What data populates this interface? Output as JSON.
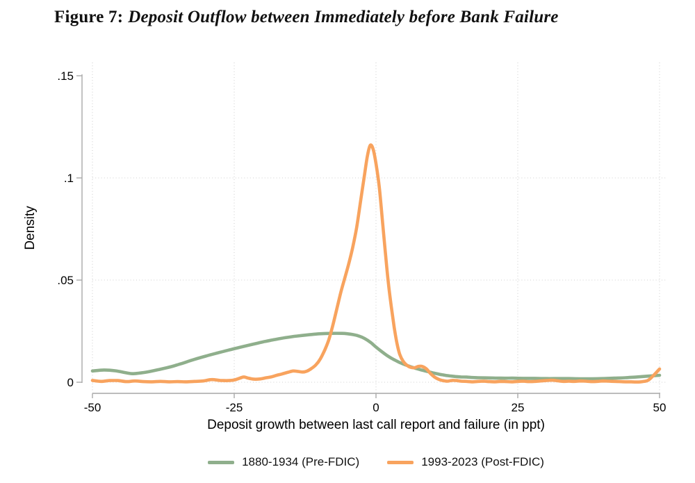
{
  "title": {
    "prefix": "Figure 7:",
    "main": "Deposit Outflow between Immediately before Bank Failure"
  },
  "chart_data": {
    "type": "line",
    "title": "Figure 7: Deposit Outflow between Immediately before Bank Failure",
    "xlabel": "Deposit growth between last call report and failure (in ppt)",
    "ylabel": "Density",
    "xlim": [
      -50,
      50
    ],
    "ylim": [
      0,
      0.15
    ],
    "grid": "dotted",
    "legend_position": "bottom-center",
    "axis_color": "#a9a9a9",
    "gridline_color": "#cfcfcf",
    "x_ticks": [
      {
        "value": -50,
        "label": "-50",
        "grid": true
      },
      {
        "value": -25,
        "label": "-25",
        "grid": true
      },
      {
        "value": 0,
        "label": "0",
        "grid": true
      },
      {
        "value": 25,
        "label": "25",
        "grid": true
      },
      {
        "value": 50,
        "label": "50",
        "grid": true
      }
    ],
    "y_ticks": [
      {
        "value": 0,
        "label": "0",
        "grid": true
      },
      {
        "value": 0.05,
        "label": ".05",
        "grid": true
      },
      {
        "value": 0.1,
        "label": ".1",
        "grid": true
      },
      {
        "value": 0.15,
        "label": ".15",
        "grid": false
      }
    ],
    "series": [
      {
        "name": "1880-1934 (Pre-FDIC)",
        "color": "#8FAF8C",
        "points": [
          [
            -50,
            0.0055
          ],
          [
            -48,
            0.006
          ],
          [
            -46,
            0.0056
          ],
          [
            -44,
            0.0046
          ],
          [
            -43,
            0.0042
          ],
          [
            -42,
            0.0044
          ],
          [
            -40,
            0.0052
          ],
          [
            -38,
            0.0064
          ],
          [
            -36,
            0.0077
          ],
          [
            -34,
            0.0094
          ],
          [
            -32,
            0.0112
          ],
          [
            -30,
            0.0128
          ],
          [
            -28,
            0.0143
          ],
          [
            -26,
            0.0157
          ],
          [
            -24,
            0.0171
          ],
          [
            -22,
            0.0184
          ],
          [
            -20,
            0.0197
          ],
          [
            -18,
            0.0208
          ],
          [
            -16,
            0.0218
          ],
          [
            -14,
            0.0226
          ],
          [
            -12,
            0.0232
          ],
          [
            -10,
            0.0237
          ],
          [
            -8,
            0.0239
          ],
          [
            -6,
            0.0239
          ],
          [
            -5,
            0.0237
          ],
          [
            -4,
            0.0233
          ],
          [
            -3,
            0.0226
          ],
          [
            -2,
            0.0214
          ],
          [
            -1,
            0.0196
          ],
          [
            0,
            0.0172
          ],
          [
            1,
            0.015
          ],
          [
            2,
            0.013
          ],
          [
            3,
            0.0113
          ],
          [
            4,
            0.0099
          ],
          [
            5,
            0.0087
          ],
          [
            6,
            0.0077
          ],
          [
            7,
            0.0068
          ],
          [
            8,
            0.006
          ],
          [
            9,
            0.0053
          ],
          [
            10,
            0.0046
          ],
          [
            11,
            0.004
          ],
          [
            12,
            0.0035
          ],
          [
            13,
            0.0031
          ],
          [
            14,
            0.0028
          ],
          [
            15,
            0.0026
          ],
          [
            16,
            0.0025
          ],
          [
            17,
            0.0023
          ],
          [
            18,
            0.0022
          ],
          [
            20,
            0.0021
          ],
          [
            22,
            0.002
          ],
          [
            24,
            0.002
          ],
          [
            26,
            0.0019
          ],
          [
            28,
            0.0019
          ],
          [
            30,
            0.0018
          ],
          [
            32,
            0.0018
          ],
          [
            34,
            0.0018
          ],
          [
            36,
            0.0017
          ],
          [
            38,
            0.0017
          ],
          [
            40,
            0.0018
          ],
          [
            42,
            0.002
          ],
          [
            44,
            0.0022
          ],
          [
            46,
            0.0026
          ],
          [
            48,
            0.003
          ],
          [
            50,
            0.0034
          ]
        ]
      },
      {
        "name": "1993-2023 (Post-FDIC)",
        "color": "#F8A35E",
        "points": [
          [
            -50,
            0.0009
          ],
          [
            -48.5,
            0.0004
          ],
          [
            -47,
            0.0008
          ],
          [
            -45.5,
            0.0008
          ],
          [
            -44,
            0.0003
          ],
          [
            -42.5,
            0.0006
          ],
          [
            -41,
            0.0003
          ],
          [
            -39.5,
            0.0002
          ],
          [
            -38,
            0.0004
          ],
          [
            -36.5,
            0.0002
          ],
          [
            -35,
            0.0003
          ],
          [
            -33.5,
            0.0002
          ],
          [
            -32,
            0.0004
          ],
          [
            -30.5,
            0.0006
          ],
          [
            -29,
            0.0013
          ],
          [
            -27.5,
            0.0009
          ],
          [
            -26,
            0.0008
          ],
          [
            -25,
            0.0011
          ],
          [
            -24,
            0.002
          ],
          [
            -23.3,
            0.0026
          ],
          [
            -22.5,
            0.002
          ],
          [
            -21.5,
            0.0015
          ],
          [
            -20.5,
            0.0016
          ],
          [
            -19.5,
            0.0021
          ],
          [
            -18.5,
            0.0026
          ],
          [
            -17.5,
            0.0034
          ],
          [
            -16.5,
            0.0041
          ],
          [
            -15.5,
            0.0049
          ],
          [
            -14.6,
            0.0055
          ],
          [
            -13.8,
            0.0053
          ],
          [
            -13,
            0.005
          ],
          [
            -12.2,
            0.0054
          ],
          [
            -11.4,
            0.0067
          ],
          [
            -10.6,
            0.0085
          ],
          [
            -9.8,
            0.0115
          ],
          [
            -9,
            0.016
          ],
          [
            -8.3,
            0.021
          ],
          [
            -7.6,
            0.028
          ],
          [
            -6.9,
            0.036
          ],
          [
            -6.2,
            0.044
          ],
          [
            -5.5,
            0.051
          ],
          [
            -4.8,
            0.058
          ],
          [
            -4.1,
            0.066
          ],
          [
            -3.4,
            0.076
          ],
          [
            -2.7,
            0.089
          ],
          [
            -2,
            0.102
          ],
          [
            -1.5,
            0.111
          ],
          [
            -1,
            0.116
          ],
          [
            -0.5,
            0.114
          ],
          [
            0,
            0.107
          ],
          [
            0.6,
            0.095
          ],
          [
            1.2,
            0.077
          ],
          [
            1.7,
            0.062
          ],
          [
            2.2,
            0.048
          ],
          [
            2.7,
            0.037
          ],
          [
            3.2,
            0.027
          ],
          [
            3.7,
            0.019
          ],
          [
            4.2,
            0.0135
          ],
          [
            4.8,
            0.0102
          ],
          [
            5.4,
            0.0084
          ],
          [
            6.1,
            0.0073
          ],
          [
            6.8,
            0.0071
          ],
          [
            7.5,
            0.0078
          ],
          [
            8.2,
            0.0077
          ],
          [
            8.9,
            0.0065
          ],
          [
            9.6,
            0.0043
          ],
          [
            10.3,
            0.0026
          ],
          [
            11,
            0.0015
          ],
          [
            11.8,
            0.0008
          ],
          [
            12.6,
            0.0005
          ],
          [
            13.4,
            0.0009
          ],
          [
            14.2,
            0.0008
          ],
          [
            15,
            0.0005
          ],
          [
            16,
            0.0004
          ],
          [
            17,
            0.0002
          ],
          [
            18,
            0.0004
          ],
          [
            19,
            0.0005
          ],
          [
            20,
            0.0003
          ],
          [
            21,
            0.0002
          ],
          [
            22,
            0.0004
          ],
          [
            23,
            0.0003
          ],
          [
            24,
            0.0002
          ],
          [
            25,
            0.0004
          ],
          [
            26,
            0.0005
          ],
          [
            27,
            0.0003
          ],
          [
            28,
            0.0004
          ],
          [
            29,
            0.0006
          ],
          [
            30,
            0.0008
          ],
          [
            31,
            0.001
          ],
          [
            32,
            0.0007
          ],
          [
            33,
            0.0004
          ],
          [
            34,
            0.0005
          ],
          [
            35,
            0.0004
          ],
          [
            36,
            0.0006
          ],
          [
            37,
            0.0005
          ],
          [
            38,
            0.0003
          ],
          [
            39,
            0.0004
          ],
          [
            40,
            0.0006
          ],
          [
            41,
            0.0005
          ],
          [
            42,
            0.0004
          ],
          [
            43,
            0.0003
          ],
          [
            44,
            0.0002
          ],
          [
            45,
            0.0002
          ],
          [
            46,
            0.0001
          ],
          [
            47,
            0.0003
          ],
          [
            48,
            0.001
          ],
          [
            49,
            0.0035
          ],
          [
            50,
            0.0065
          ]
        ]
      }
    ]
  }
}
